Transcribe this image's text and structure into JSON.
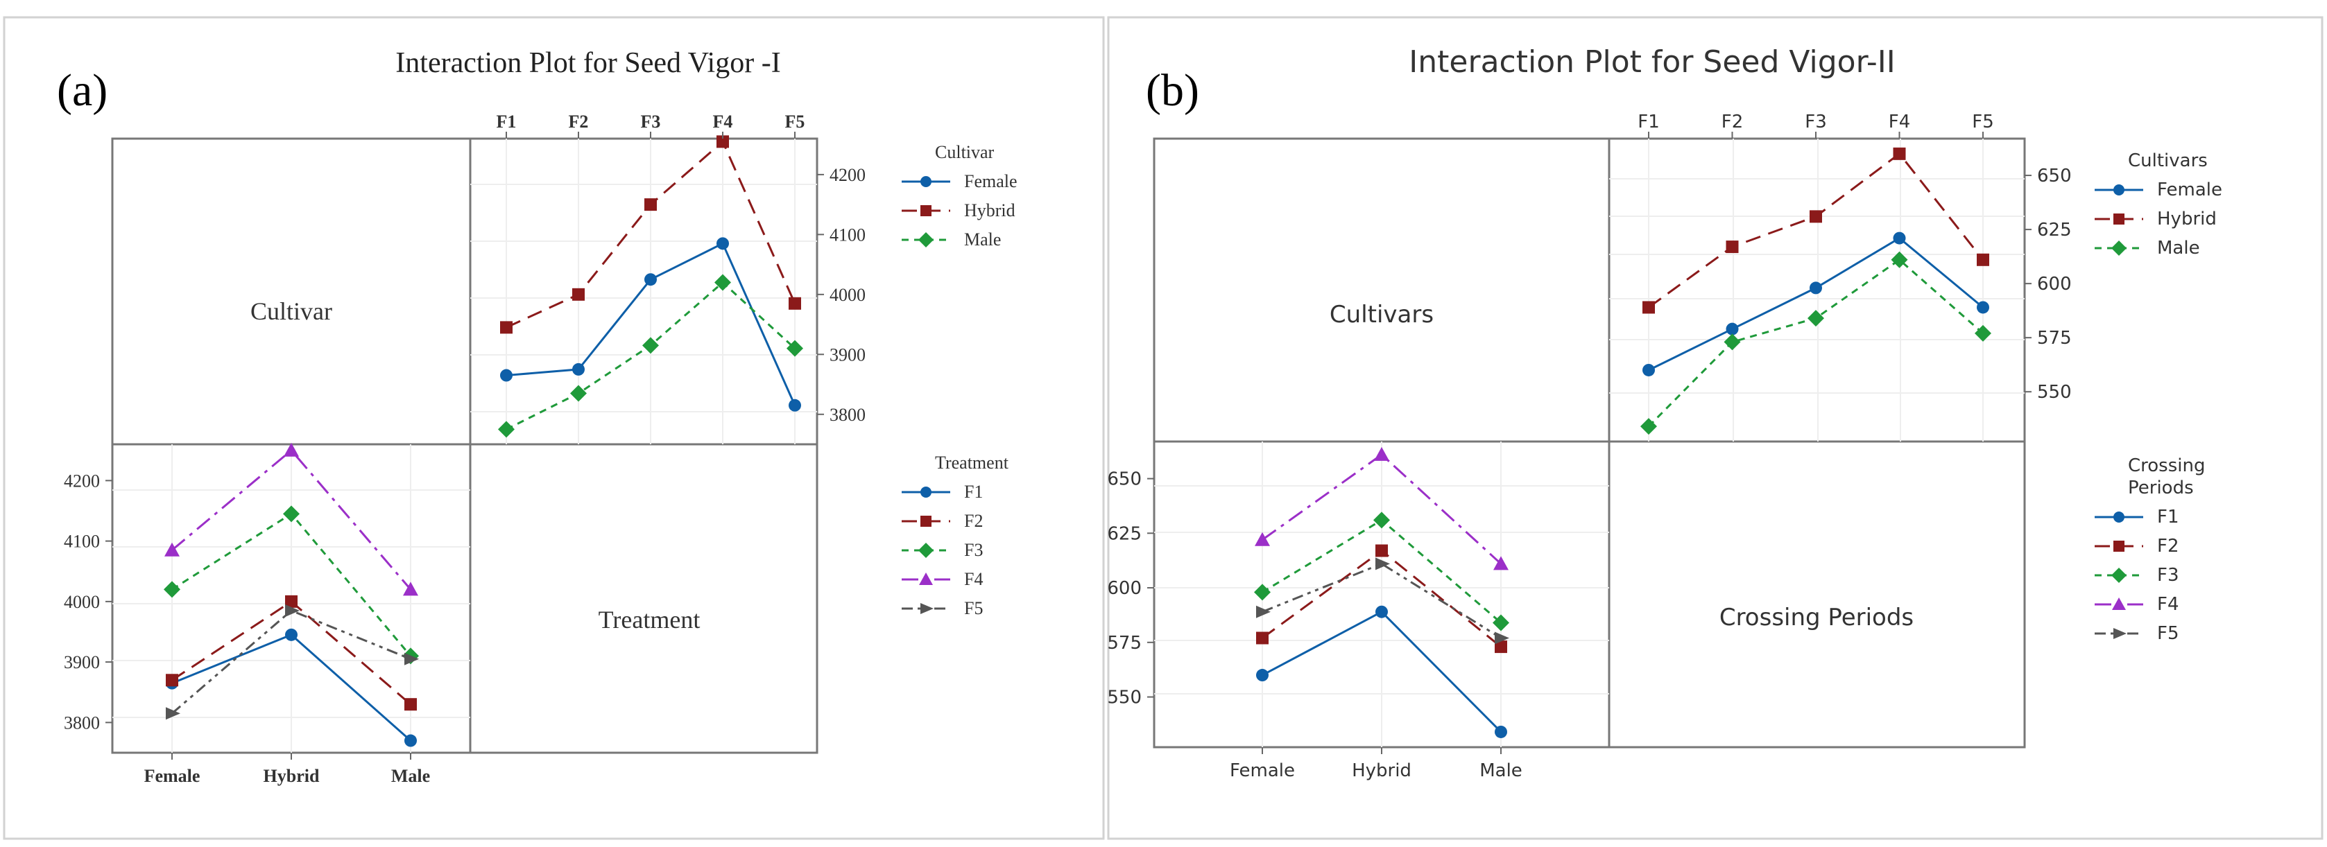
{
  "panels": [
    {
      "label": "(a)",
      "title": "Interaction Plot for Seed Vigor -I",
      "font": "serif",
      "top_var": "Cultivar",
      "bottom_var": "Treatment",
      "crossing": [
        "F1",
        "F2",
        "F3",
        "F4",
        "F5"
      ],
      "cultivars": [
        "Female",
        "Hybrid",
        "Male"
      ],
      "colors": {
        "Female": "#0e5fa8",
        "Hybrid": "#8b1a1a",
        "Male": "#1f9a3a",
        "F1": "#0e5fa8",
        "F2": "#8b1a1a",
        "F3": "#1f9a3a",
        "F4": "#9b2fc8",
        "F5": "#555555"
      },
      "legend_top": {
        "title_lines": [
          "Cultivar"
        ],
        "items": [
          "Female",
          "Hybrid",
          "Male"
        ]
      },
      "legend_bottom": {
        "title_lines": [
          "Treatment"
        ],
        "items": [
          "F1",
          "F2",
          "F3",
          "F4",
          "F5"
        ]
      }
    },
    {
      "label": "(b)",
      "title": "Interaction Plot for Seed Vigor-II",
      "font": "sans",
      "top_var": "Cultivars",
      "bottom_var": "Crossing Periods",
      "crossing": [
        "F1",
        "F2",
        "F3",
        "F4",
        "F5"
      ],
      "cultivars": [
        "Female",
        "Hybrid",
        "Male"
      ],
      "colors": {
        "Female": "#0e5fa8",
        "Hybrid": "#8b1a1a",
        "Male": "#1f9a3a",
        "F1": "#0e5fa8",
        "F2": "#8b1a1a",
        "F3": "#1f9a3a",
        "F4": "#9b2fc8",
        "F5": "#555555"
      },
      "legend_top": {
        "title_lines": [
          "Cultivars"
        ],
        "items": [
          "Female",
          "Hybrid",
          "Male"
        ]
      },
      "legend_bottom": {
        "title_lines": [
          "Crossing",
          "Periods"
        ],
        "items": [
          "F1",
          "F2",
          "F3",
          "F4",
          "F5"
        ]
      }
    }
  ],
  "chart_data": [
    {
      "type": "line",
      "title": "Interaction Plot for Seed Vigor -I",
      "subplot": "top-right",
      "x": [
        "F1",
        "F2",
        "F3",
        "F4",
        "F5"
      ],
      "ylim": [
        3750,
        4260
      ],
      "yticks": [
        3800,
        3900,
        4000,
        4100,
        4200
      ],
      "series": [
        {
          "name": "Female",
          "marker": "circle",
          "dash": "solid",
          "values": [
            3865,
            3875,
            4025,
            4085,
            3815
          ]
        },
        {
          "name": "Hybrid",
          "marker": "square",
          "dash": "long",
          "values": [
            3945,
            4000,
            4150,
            4255,
            3985
          ]
        },
        {
          "name": "Male",
          "marker": "diamond",
          "dash": "short",
          "values": [
            3775,
            3835,
            3915,
            4020,
            3910
          ]
        }
      ]
    },
    {
      "type": "line",
      "title": "Interaction Plot for Seed Vigor -I",
      "subplot": "bottom-left",
      "x": [
        "Female",
        "Hybrid",
        "Male"
      ],
      "ylim": [
        3750,
        4260
      ],
      "yticks": [
        3800,
        3900,
        4000,
        4100,
        4200
      ],
      "series": [
        {
          "name": "F1",
          "marker": "circle",
          "dash": "solid",
          "values": [
            3865,
            3945,
            3770
          ]
        },
        {
          "name": "F2",
          "marker": "square",
          "dash": "long",
          "values": [
            3870,
            4000,
            3830
          ]
        },
        {
          "name": "F3",
          "marker": "diamond",
          "dash": "short",
          "values": [
            4020,
            4145,
            3910
          ]
        },
        {
          "name": "F4",
          "marker": "triangle",
          "dash": "dashdot",
          "values": [
            4085,
            4250,
            4020
          ]
        },
        {
          "name": "F5",
          "marker": "arrow",
          "dash": "dashdotdot",
          "values": [
            3815,
            3985,
            3905
          ]
        }
      ]
    },
    {
      "type": "line",
      "title": "Interaction Plot for Seed Vigor-II",
      "subplot": "top-right",
      "x": [
        "F1",
        "F2",
        "F3",
        "F4",
        "F5"
      ],
      "ylim": [
        527,
        667
      ],
      "yticks": [
        550,
        575,
        600,
        625,
        650
      ],
      "series": [
        {
          "name": "Female",
          "marker": "circle",
          "dash": "solid",
          "values": [
            560,
            579,
            598,
            621,
            589
          ]
        },
        {
          "name": "Hybrid",
          "marker": "square",
          "dash": "long",
          "values": [
            589,
            617,
            631,
            660,
            611
          ]
        },
        {
          "name": "Male",
          "marker": "diamond",
          "dash": "short",
          "values": [
            534,
            573,
            584,
            611,
            577
          ]
        }
      ]
    },
    {
      "type": "line",
      "title": "Interaction Plot for Seed Vigor-II",
      "subplot": "bottom-left",
      "x": [
        "Female",
        "Hybrid",
        "Male"
      ],
      "ylim": [
        527,
        667
      ],
      "yticks": [
        550,
        575,
        600,
        625,
        650
      ],
      "series": [
        {
          "name": "F1",
          "marker": "circle",
          "dash": "solid",
          "values": [
            560,
            589,
            534
          ]
        },
        {
          "name": "F2",
          "marker": "square",
          "dash": "long",
          "values": [
            577,
            617,
            573
          ]
        },
        {
          "name": "F3",
          "marker": "diamond",
          "dash": "short",
          "values": [
            598,
            631,
            584
          ]
        },
        {
          "name": "F4",
          "marker": "triangle",
          "dash": "dashdot",
          "values": [
            622,
            661,
            611
          ]
        },
        {
          "name": "F5",
          "marker": "arrow",
          "dash": "dashdotdot",
          "values": [
            589,
            611,
            577
          ]
        }
      ]
    }
  ]
}
